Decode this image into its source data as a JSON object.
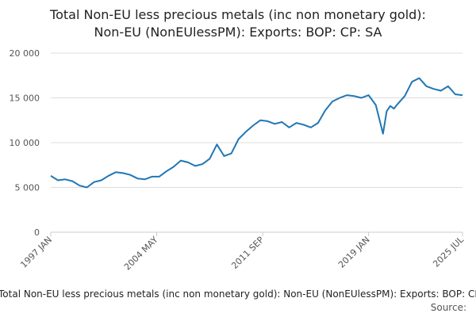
{
  "chart_data": {
    "type": "line",
    "title_lines": [
      "Total Non-EU less precious metals (inc non monetary gold):",
      "Non-EU (NonEUlessPM): Exports: BOP: CP: SA"
    ],
    "legend_text": "Total Non-EU less precious metals (inc non monetary gold): Non-EU (NonEUlessPM): Exports: BOP: CP: SA",
    "source_label": "Source:",
    "ylim": [
      0,
      20000
    ],
    "y_ticks": [
      0,
      5000,
      10000,
      15000,
      20000
    ],
    "y_tick_labels": [
      "0",
      "5 000",
      "10 000",
      "15 000",
      "20 000"
    ],
    "x_range": [
      1997.0,
      2025.5
    ],
    "x_ticks": [
      1997.0,
      2004.33,
      2011.67,
      2019.0,
      2025.5
    ],
    "x_tick_labels": [
      "1997 JAN",
      "2004 MAY",
      "2011 SEP",
      "2019 JAN",
      "2025 JUL"
    ],
    "grid": true,
    "colors": {
      "series": "#1f77b4",
      "grid": "#dddddd",
      "axis": "#cccccc"
    },
    "series": [
      {
        "name": "Total Non-EU less precious metals (inc non monetary gold): Non-EU (NonEUlessPM): Exports: BOP: CP: SA",
        "x": [
          1997.0,
          1997.5,
          1998.0,
          1998.5,
          1999.0,
          1999.5,
          2000.0,
          2000.5,
          2001.0,
          2001.5,
          2002.0,
          2002.5,
          2003.0,
          2003.5,
          2004.0,
          2004.5,
          2005.0,
          2005.5,
          2006.0,
          2006.5,
          2007.0,
          2007.5,
          2008.0,
          2008.5,
          2009.0,
          2009.5,
          2010.0,
          2010.5,
          2011.0,
          2011.5,
          2012.0,
          2012.5,
          2013.0,
          2013.5,
          2014.0,
          2014.5,
          2015.0,
          2015.5,
          2016.0,
          2016.5,
          2017.0,
          2017.5,
          2018.0,
          2018.5,
          2019.0,
          2019.5,
          2020.0,
          2020.25,
          2020.5,
          2020.75,
          2021.0,
          2021.5,
          2022.0,
          2022.5,
          2023.0,
          2023.5,
          2024.0,
          2024.5,
          2025.0,
          2025.5
        ],
        "values": [
          6300,
          5800,
          5900,
          5700,
          5200,
          5000,
          5600,
          5800,
          6300,
          6700,
          6600,
          6400,
          6000,
          5900,
          6200,
          6200,
          6800,
          7300,
          8000,
          7800,
          7400,
          7600,
          8200,
          9800,
          8500,
          8800,
          10400,
          11200,
          11900,
          12500,
          12400,
          12100,
          12300,
          11700,
          12200,
          12000,
          11700,
          12200,
          13600,
          14600,
          15000,
          15300,
          15200,
          15000,
          15300,
          14200,
          11000,
          13500,
          14100,
          13800,
          14300,
          15200,
          16800,
          17200,
          16300,
          16000,
          15800,
          16300,
          15400,
          15300
        ]
      }
    ]
  }
}
